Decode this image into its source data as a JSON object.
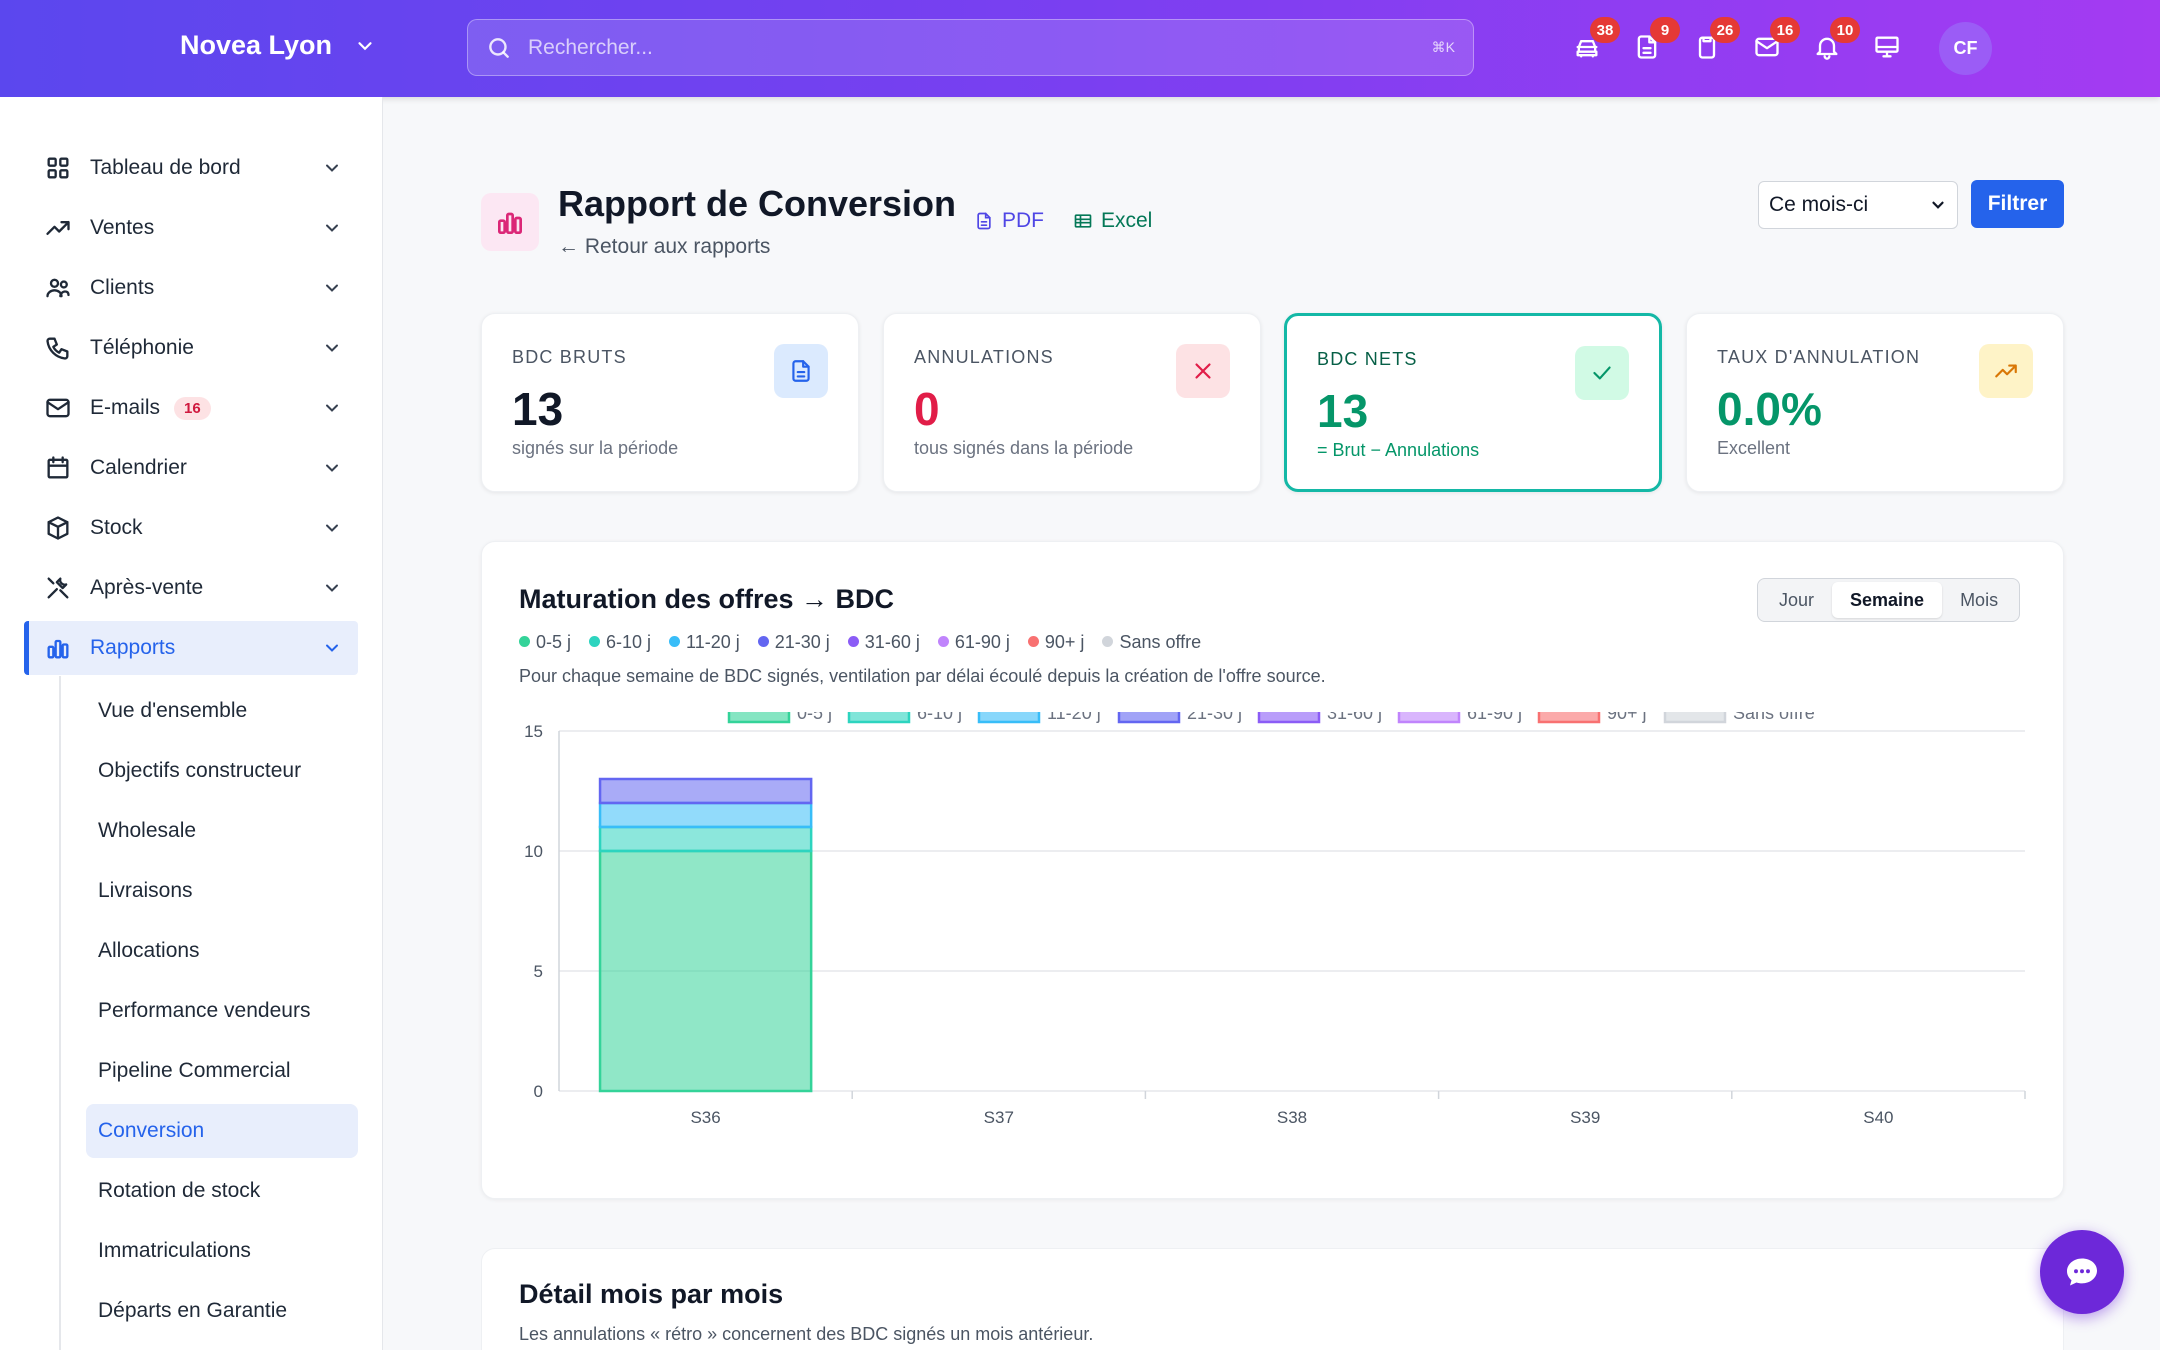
{
  "topbar": {
    "brand": "Novea Lyon",
    "search_placeholder": "Rechercher...",
    "search_shortcut": "⌘K",
    "icons": [
      {
        "name": "car-icon",
        "badge": "38"
      },
      {
        "name": "document-icon",
        "badge": "9"
      },
      {
        "name": "clipboard-icon",
        "badge": "26"
      },
      {
        "name": "mail-icon",
        "badge": "16"
      },
      {
        "name": "bell-icon",
        "badge": "10"
      },
      {
        "name": "monitor-icon",
        "badge": ""
      }
    ],
    "avatar": "CF"
  },
  "sidebar": {
    "items": [
      {
        "label": "Tableau de bord",
        "icon": "grid-icon"
      },
      {
        "label": "Ventes",
        "icon": "trend-icon"
      },
      {
        "label": "Clients",
        "icon": "users-icon"
      },
      {
        "label": "Téléphonie",
        "icon": "phone-icon"
      },
      {
        "label": "E-mails",
        "icon": "mail-icon",
        "badge": "16"
      },
      {
        "label": "Calendrier",
        "icon": "calendar-icon"
      },
      {
        "label": "Stock",
        "icon": "box-icon"
      },
      {
        "label": "Après-vente",
        "icon": "tools-icon"
      },
      {
        "label": "Rapports",
        "icon": "chart-icon",
        "active": true
      }
    ],
    "subitems": [
      "Vue d'ensemble",
      "Objectifs constructeur",
      "Wholesale",
      "Livraisons",
      "Allocations",
      "Performance vendeurs",
      "Pipeline Commercial",
      "Conversion",
      "Rotation de stock",
      "Immatriculations",
      "Départs en Garantie"
    ],
    "active_sub": "Conversion"
  },
  "header": {
    "title": "Rapport de Conversion",
    "back": "← Retour aux rapports",
    "pdf": "PDF",
    "excel": "Excel",
    "period": "Ce mois-ci",
    "filter": "Filtrer"
  },
  "cards": [
    {
      "label": "BDC BRUTS",
      "value": "13",
      "sub": "signés sur la période",
      "value_color": "#111827",
      "icon": "document-icon",
      "icon_bg": "#dbeafe",
      "icon_color": "#2563eb"
    },
    {
      "label": "ANNULATIONS",
      "value": "0",
      "sub": "tous signés dans la période",
      "value_color": "#e11d48",
      "icon": "close-icon",
      "icon_bg": "#fde2e4",
      "icon_color": "#e11d48"
    },
    {
      "label": "BDC NETS",
      "value": "13",
      "sub": "= Brut − Annulations",
      "value_color": "#059669",
      "icon": "check-icon",
      "icon_bg": "#d1fae5",
      "icon_color": "#059669",
      "highlight": true
    },
    {
      "label": "TAUX D'ANNULATION",
      "value": "0.0%",
      "sub": "Excellent",
      "value_color": "#059669",
      "icon": "trend-up-icon",
      "icon_bg": "#fef3c7",
      "icon_color": "#d97706"
    }
  ],
  "chart_panel": {
    "title": "Maturation des offres → BDC",
    "description": "Pour chaque semaine de BDC signés, ventilation par délai écoulé depuis la création de l'offre source.",
    "toggle": [
      "Jour",
      "Semaine",
      "Mois"
    ],
    "toggle_active": "Semaine"
  },
  "chart_data": {
    "type": "bar",
    "stacked": true,
    "categories": [
      "S36",
      "S37",
      "S38",
      "S39",
      "S40"
    ],
    "ylim": [
      0,
      15
    ],
    "yticks": [
      0,
      5,
      10,
      15
    ],
    "grid": true,
    "legend_position": "top",
    "series": [
      {
        "name": "0-5 j",
        "color": "#34d399",
        "values": [
          10,
          0,
          0,
          0,
          0
        ]
      },
      {
        "name": "6-10 j",
        "color": "#2dd4bf",
        "values": [
          1,
          0,
          0,
          0,
          0
        ]
      },
      {
        "name": "11-20 j",
        "color": "#38bdf8",
        "values": [
          1,
          0,
          0,
          0,
          0
        ]
      },
      {
        "name": "21-30 j",
        "color": "#6366f1",
        "values": [
          1,
          0,
          0,
          0,
          0
        ]
      },
      {
        "name": "31-60 j",
        "color": "#8b5cf6",
        "values": [
          0,
          0,
          0,
          0,
          0
        ]
      },
      {
        "name": "61-90 j",
        "color": "#c084fc",
        "values": [
          0,
          0,
          0,
          0,
          0
        ]
      },
      {
        "name": "90+ j",
        "color": "#f87171",
        "values": [
          0,
          0,
          0,
          0,
          0
        ]
      },
      {
        "name": "Sans offre",
        "color": "#d1d5db",
        "values": [
          0,
          0,
          0,
          0,
          0
        ]
      }
    ]
  },
  "detail_panel": {
    "title": "Détail mois par mois",
    "description": "Les annulations « rétro » concernent des BDC signés un mois antérieur."
  }
}
